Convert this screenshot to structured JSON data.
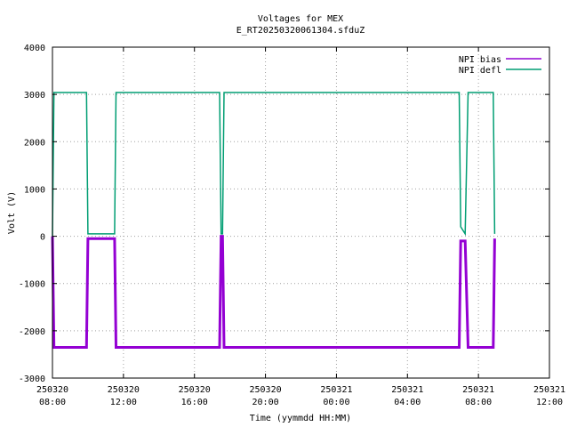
{
  "chart_data": {
    "type": "line",
    "title": "Voltages for MEX",
    "subtitle": "E_RT20250320061304.sfduZ",
    "xlabel": "Time (yymmdd HH:MM)",
    "ylabel": "Volt (V)",
    "ylim": [
      -3000,
      4000
    ],
    "xlim": [
      "2025-03-20 08:00",
      "2025-03-21 12:00"
    ],
    "y_ticks": [
      -3000,
      -2000,
      -1000,
      0,
      1000,
      2000,
      3000,
      4000
    ],
    "x_ticks": [
      {
        "date": "250320",
        "time": "08:00"
      },
      {
        "date": "250320",
        "time": "12:00"
      },
      {
        "date": "250320",
        "time": "16:00"
      },
      {
        "date": "250320",
        "time": "20:00"
      },
      {
        "date": "250321",
        "time": "00:00"
      },
      {
        "date": "250321",
        "time": "04:00"
      },
      {
        "date": "250321",
        "time": "08:00"
      },
      {
        "date": "250321",
        "time": "12:00"
      }
    ],
    "grid": true,
    "legend_position": "top-right",
    "series": [
      {
        "name": "NPI bias",
        "color": "#9400d3",
        "points": [
          [
            "2025-03-20 08:00",
            0
          ],
          [
            "2025-03-20 08:05",
            -2350
          ],
          [
            "2025-03-20 09:55",
            -2350
          ],
          [
            "2025-03-20 10:00",
            -50
          ],
          [
            "2025-03-20 11:30",
            -50
          ],
          [
            "2025-03-20 11:35",
            -2350
          ],
          [
            "2025-03-20 17:25",
            -2350
          ],
          [
            "2025-03-20 17:30",
            0
          ],
          [
            "2025-03-20 17:35",
            0
          ],
          [
            "2025-03-20 17:40",
            -2350
          ],
          [
            "2025-03-21 06:55",
            -2350
          ],
          [
            "2025-03-21 07:00",
            -100
          ],
          [
            "2025-03-21 07:15",
            -100
          ],
          [
            "2025-03-21 07:25",
            -2350
          ],
          [
            "2025-03-21 08:50",
            -2350
          ],
          [
            "2025-03-21 08:55",
            -50
          ]
        ]
      },
      {
        "name": "NPI defl",
        "color": "#009e73",
        "points": [
          [
            "2025-03-20 08:00",
            0
          ],
          [
            "2025-03-20 08:05",
            3040
          ],
          [
            "2025-03-20 09:55",
            3040
          ],
          [
            "2025-03-20 10:00",
            50
          ],
          [
            "2025-03-20 11:30",
            50
          ],
          [
            "2025-03-20 11:35",
            3040
          ],
          [
            "2025-03-20 17:25",
            3040
          ],
          [
            "2025-03-20 17:30",
            50
          ],
          [
            "2025-03-20 17:35",
            50
          ],
          [
            "2025-03-20 17:40",
            3040
          ],
          [
            "2025-03-21 06:55",
            3040
          ],
          [
            "2025-03-21 07:00",
            200
          ],
          [
            "2025-03-21 07:15",
            50
          ],
          [
            "2025-03-21 07:25",
            3040
          ],
          [
            "2025-03-21 08:50",
            3040
          ],
          [
            "2025-03-21 08:55",
            50
          ]
        ]
      }
    ]
  }
}
